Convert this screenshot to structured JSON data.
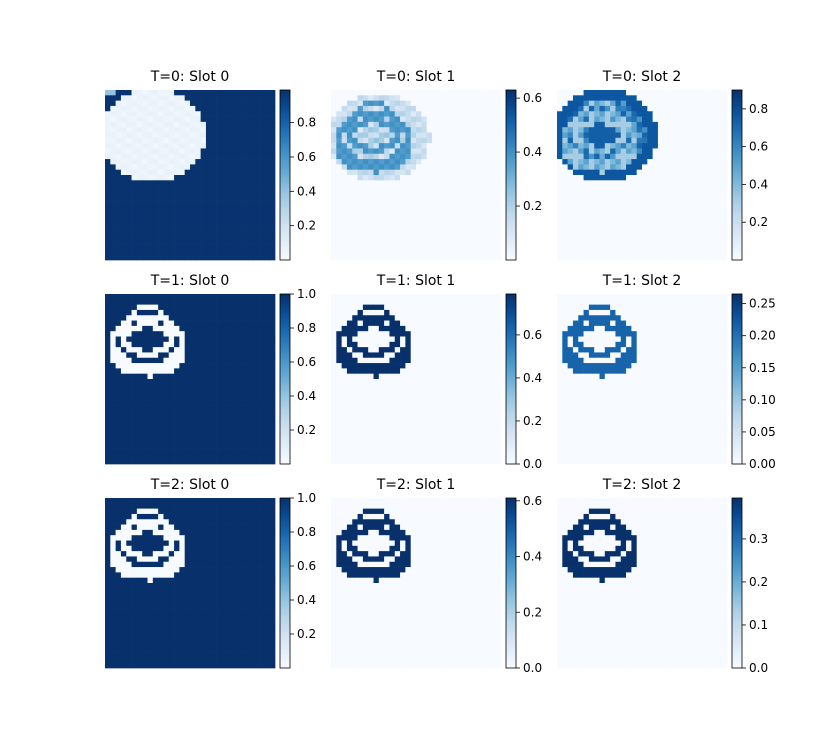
{
  "colors": {
    "cmap_low": "#f7fbff",
    "cmap_high": "#08306b"
  },
  "chart_data": [
    {
      "type": "heatmap",
      "title": "T=0: Slot 0",
      "pattern": "background",
      "cbar_ticks": [
        "0.2",
        "0.4",
        "0.6",
        "0.8"
      ],
      "cbar_range": [
        0.0,
        0.99
      ]
    },
    {
      "type": "heatmap",
      "title": "T=0: Slot 1",
      "pattern": "blob_object",
      "cbar_ticks": [
        "0.2",
        "0.4",
        "0.6"
      ],
      "cbar_range": [
        0.0,
        0.63
      ]
    },
    {
      "type": "heatmap",
      "title": "T=0: Slot 2",
      "pattern": "blob_ring",
      "cbar_ticks": [
        "0.2",
        "0.4",
        "0.6",
        "0.8"
      ],
      "cbar_range": [
        0.0,
        0.9
      ]
    },
    {
      "type": "heatmap",
      "title": "T=1: Slot 0",
      "pattern": "background_outline",
      "cbar_ticks": [
        "0.2",
        "0.4",
        "0.6",
        "0.8",
        "1.0"
      ],
      "cbar_range": [
        0.0,
        1.0
      ]
    },
    {
      "type": "heatmap",
      "title": "T=1: Slot 1",
      "pattern": "outline",
      "cbar_ticks": [
        "0.0",
        "0.2",
        "0.4",
        "0.6"
      ],
      "cbar_range": [
        0.0,
        0.79
      ]
    },
    {
      "type": "heatmap",
      "title": "T=1: Slot 2",
      "pattern": "outline_faint",
      "cbar_ticks": [
        "0.00",
        "0.05",
        "0.10",
        "0.15",
        "0.20",
        "0.25"
      ],
      "cbar_range": [
        0.0,
        0.265
      ]
    },
    {
      "type": "heatmap",
      "title": "T=2: Slot 0",
      "pattern": "background_outline",
      "cbar_ticks": [
        "0.2",
        "0.4",
        "0.6",
        "0.8",
        "1.0"
      ],
      "cbar_range": [
        0.0,
        1.0
      ]
    },
    {
      "type": "heatmap",
      "title": "T=2: Slot 1",
      "pattern": "outline",
      "cbar_ticks": [
        "0.0",
        "0.2",
        "0.4",
        "0.6"
      ],
      "cbar_range": [
        0.0,
        0.61
      ]
    },
    {
      "type": "heatmap",
      "title": "T=2: Slot 2",
      "pattern": "outline_partial",
      "cbar_ticks": [
        "0.0",
        "0.1",
        "0.2",
        "0.3"
      ],
      "cbar_range": [
        0.0,
        0.395
      ]
    }
  ]
}
